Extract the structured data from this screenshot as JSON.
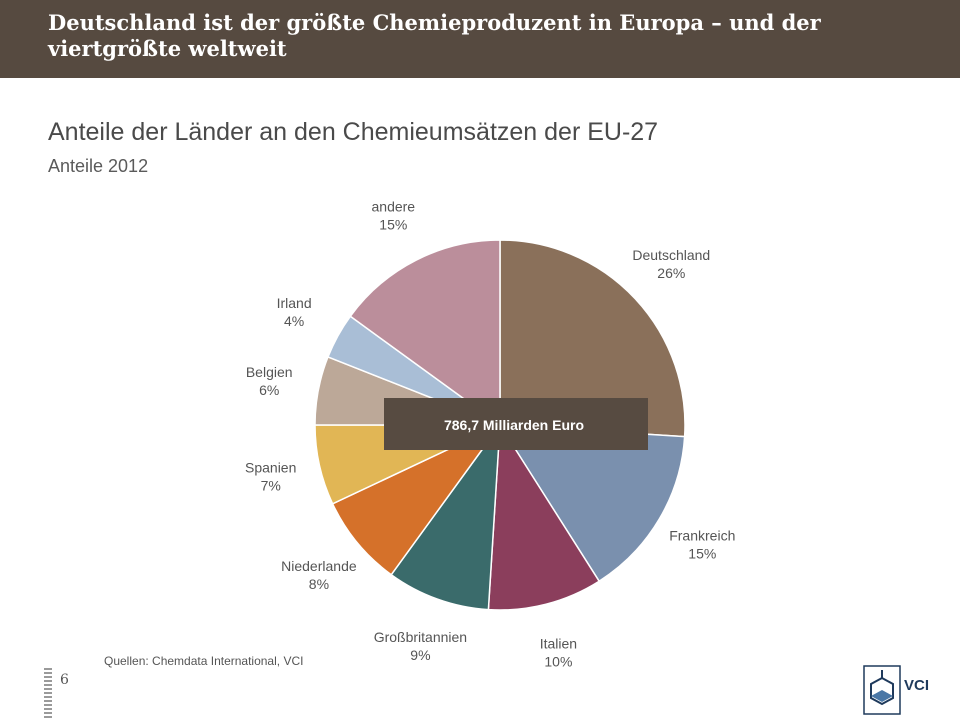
{
  "header": {
    "title": "Deutschland ist der größte Chemieproduzent in Europa – und der viertgrößte weltweit"
  },
  "chart_data": {
    "type": "pie",
    "title": "Anteile der Länder an den Chemieumsätzen der EU-27",
    "subtitle": "Anteile 2012",
    "center_label": "786,7 Milliarden Euro",
    "slices": [
      {
        "label": "Deutschland",
        "value": 26,
        "value_label": "26%",
        "color": "#8a705a"
      },
      {
        "label": "Frankreich",
        "value": 15,
        "value_label": "15%",
        "color": "#7a90ae"
      },
      {
        "label": "Italien",
        "value": 10,
        "value_label": "10%",
        "color": "#8b3e5c"
      },
      {
        "label": "Großbritannien",
        "value": 9,
        "value_label": "9%",
        "color": "#3a6b6b"
      },
      {
        "label": "Niederlande",
        "value": 8,
        "value_label": "8%",
        "color": "#d5712a"
      },
      {
        "label": "Spanien",
        "value": 7,
        "value_label": "7%",
        "color": "#e1b655"
      },
      {
        "label": "Belgien",
        "value": 6,
        "value_label": "6%",
        "color": "#bca898"
      },
      {
        "label": "Irland",
        "value": 4,
        "value_label": "4%",
        "color": "#a9bed6"
      },
      {
        "label": "andere",
        "value": 15,
        "value_label": "15%",
        "color": "#bb8e9b"
      }
    ]
  },
  "footer": {
    "source": "Quellen: Chemdata International, VCI",
    "page_number": "6",
    "logo_text": "VCI"
  }
}
